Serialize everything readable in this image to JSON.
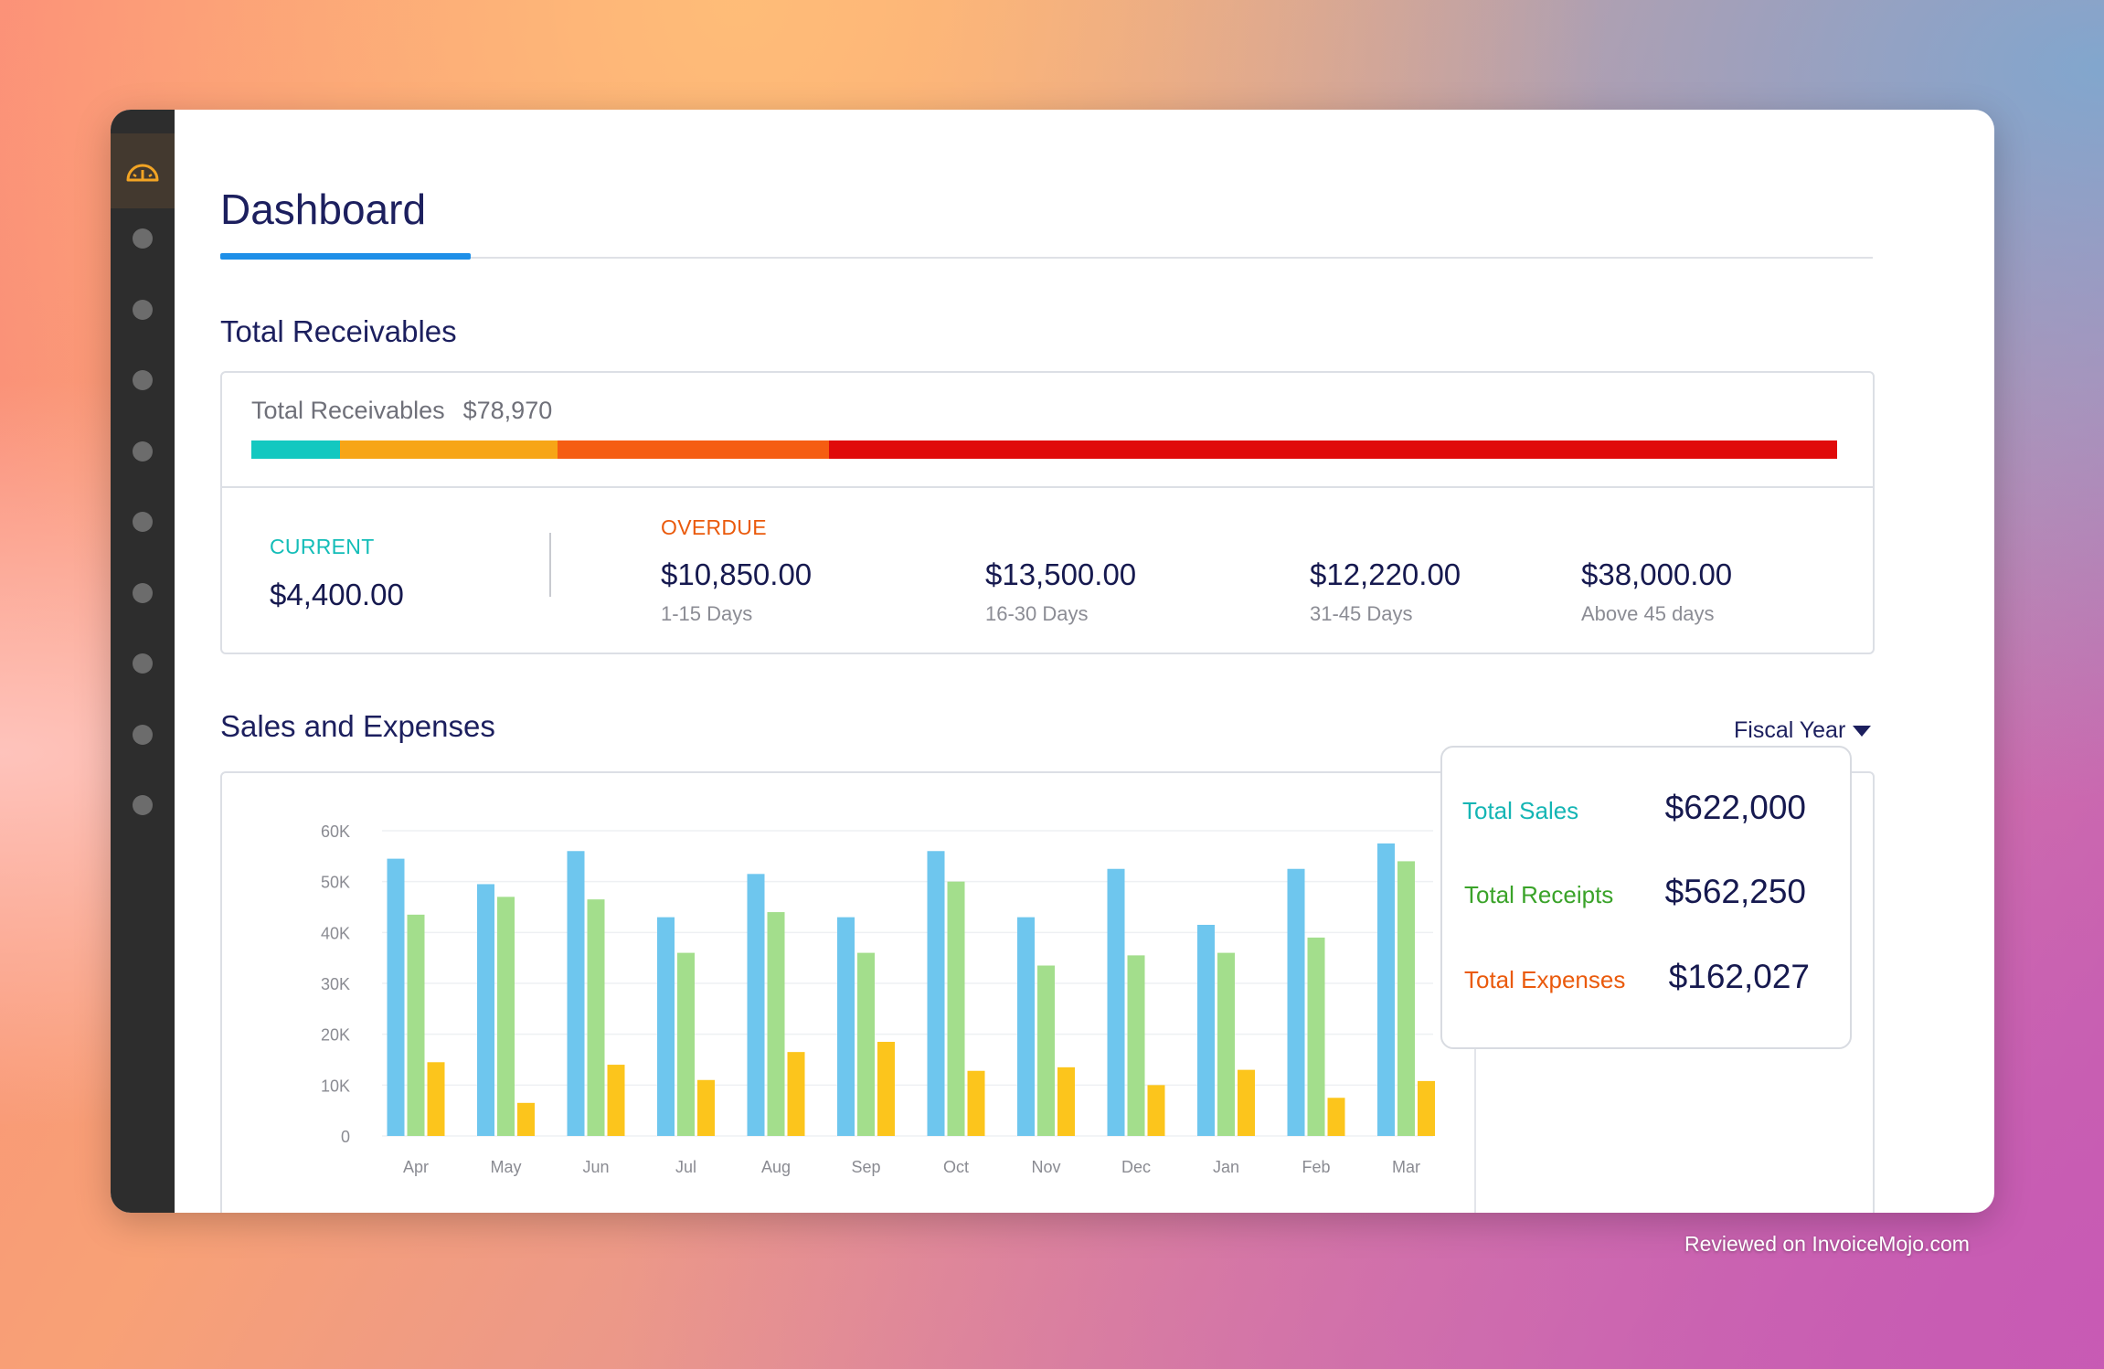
{
  "header": {
    "title": "Dashboard"
  },
  "sidebar": {
    "logo_icon": "speedometer-icon",
    "nav_dot_count": 9
  },
  "receivables": {
    "section_title": "Total Receivables",
    "summary_label": "Total Receivables",
    "summary_amount": "$78,970",
    "bar": [
      {
        "name": "current",
        "value": 4400,
        "color": "#13c8c0"
      },
      {
        "name": "1-15",
        "value": 10850,
        "color": "#f7a516"
      },
      {
        "name": "16-30",
        "value": 13500,
        "color": "#f55d12"
      },
      {
        "name": "31-45-and-above",
        "value": 50220,
        "color": "#e00a0a"
      }
    ],
    "current": {
      "label": "CURRENT",
      "amount": "$4,400.00",
      "color": "#14bdb8"
    },
    "overdue": {
      "label": "OVERDUE",
      "color": "#ea5a0c",
      "buckets": [
        {
          "amount": "$10,850.00",
          "range": "1-15 Days"
        },
        {
          "amount": "$13,500.00",
          "range": "16-30 Days"
        },
        {
          "amount": "$12,220.00",
          "range": "31-45 Days"
        },
        {
          "amount": "$38,000.00",
          "range": "Above 45 days"
        }
      ]
    }
  },
  "sales": {
    "section_title": "Sales and Expenses",
    "period_selector": "Fiscal Year",
    "totals": [
      {
        "label": "Total Sales",
        "value": "$622,000",
        "color": "#14b5b4"
      },
      {
        "label": "Total Receipts",
        "value": "$562,250",
        "color": "#3aa329"
      },
      {
        "label": "Total Expenses",
        "value": "$162,027",
        "color": "#ea5a0c"
      }
    ]
  },
  "chart_data": {
    "type": "bar",
    "categories": [
      "Apr",
      "May",
      "Jun",
      "Jul",
      "Aug",
      "Sep",
      "Oct",
      "Nov",
      "Dec",
      "Jan",
      "Feb",
      "Mar"
    ],
    "series": [
      {
        "color": "#6ec6ee",
        "values": [
          54500,
          49500,
          56000,
          43000,
          51500,
          43000,
          56000,
          43000,
          52500,
          41500,
          52500,
          57500
        ]
      },
      {
        "color": "#a3de8c",
        "values": [
          43500,
          47000,
          46500,
          36000,
          44000,
          36000,
          50000,
          33500,
          35500,
          36000,
          39000,
          54000
        ]
      },
      {
        "color": "#fcc51c",
        "values": [
          14500,
          6500,
          14000,
          11000,
          16500,
          18500,
          12800,
          13500,
          10000,
          13000,
          7500,
          10800
        ]
      }
    ],
    "yticks": [
      "0",
      "10K",
      "20K",
      "30K",
      "40K",
      "50K",
      "60K"
    ],
    "ylim": [
      0,
      60000
    ],
    "grid": true,
    "legend": "none"
  },
  "watermark": "Reviewed on InvoiceMojo.com"
}
